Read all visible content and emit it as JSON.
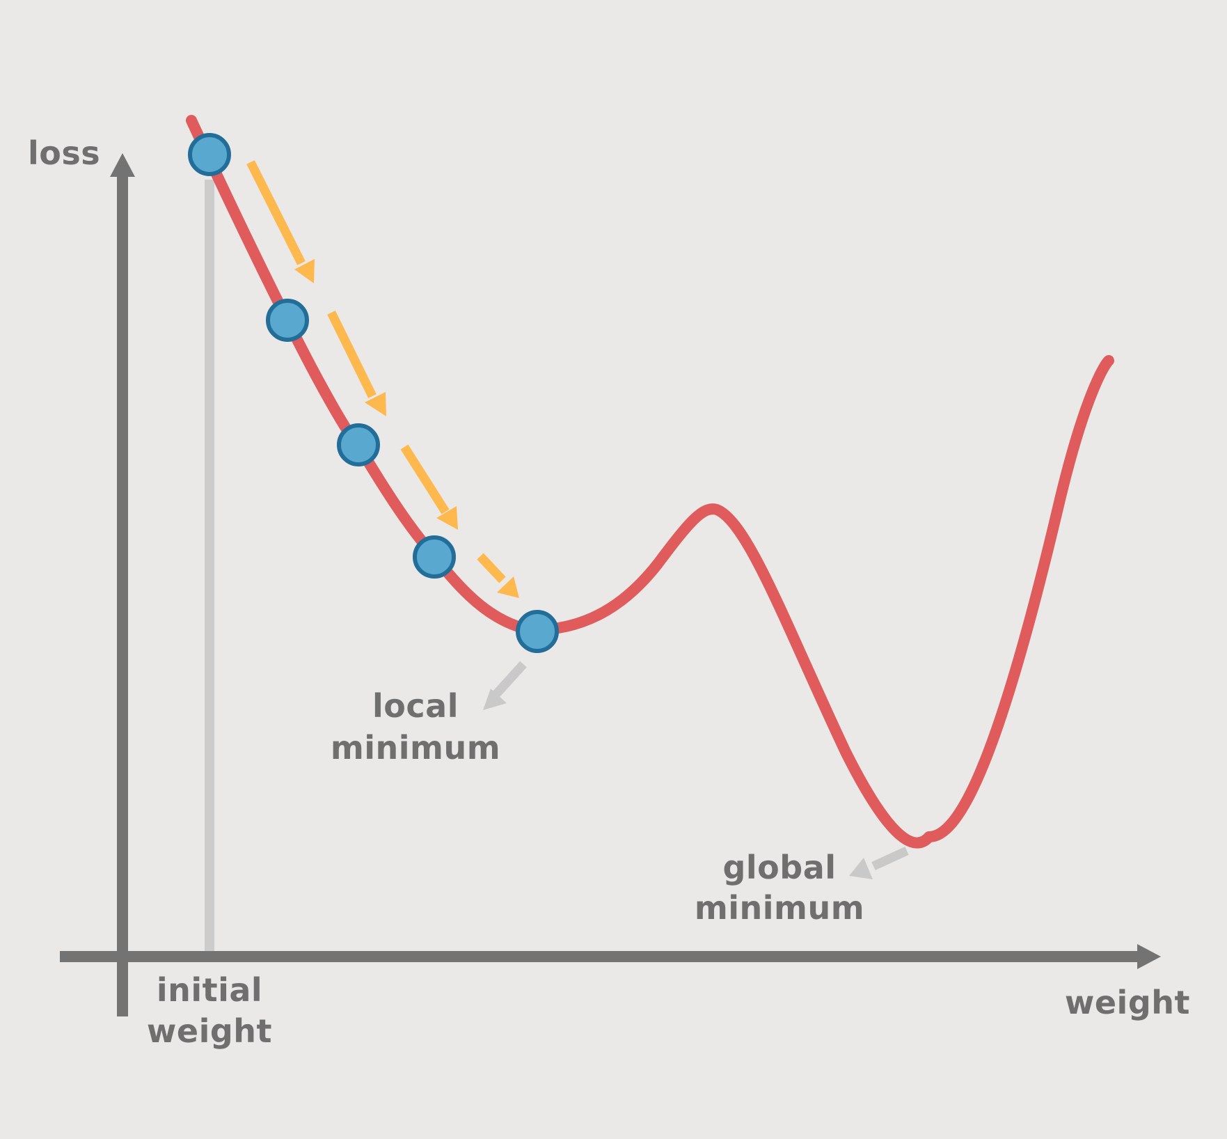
{
  "colors": {
    "background": "#EBE9E7",
    "axis": "#737373",
    "curve": "#E05C5C",
    "step_arrow": "#FDB84E",
    "point_fill": "#58A8CF",
    "point_stroke": "#226E99",
    "pointer_arrow": "#C9C9C9",
    "guide_line": "#CCCCCC",
    "text": "#6F6F6F"
  },
  "labels": {
    "y_axis": "loss",
    "x_axis": "weight",
    "initial_weight": [
      "initial",
      "weight"
    ],
    "local_minimum": [
      "local",
      "minimum"
    ],
    "global_minimum": [
      "global",
      "minimum"
    ]
  },
  "descent_steps": 5
}
